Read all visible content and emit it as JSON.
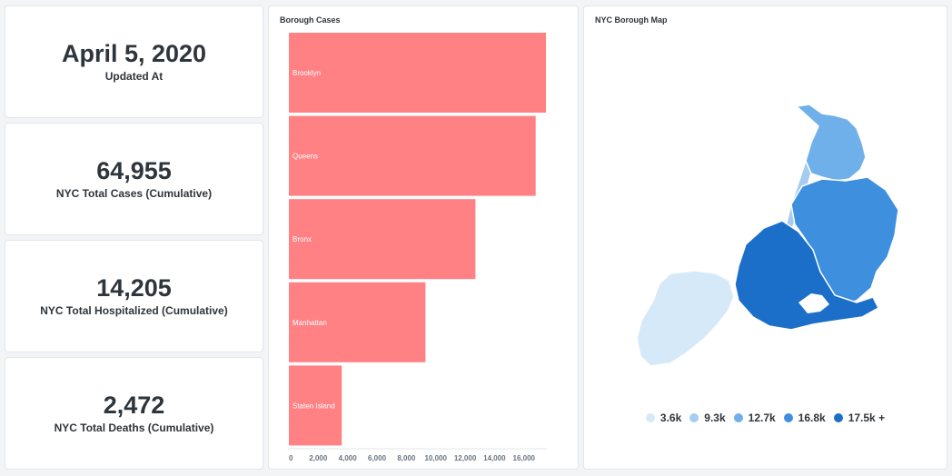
{
  "stats": [
    {
      "value": "April 5, 2020",
      "label": "Updated At"
    },
    {
      "value": "64,955",
      "label": "NYC Total Cases (Cumulative)"
    },
    {
      "value": "14,205",
      "label": "NYC Total Hospitalized (Cumulative)"
    },
    {
      "value": "2,472",
      "label": "NYC Total Deaths (Cumulative)"
    }
  ],
  "bar_card": {
    "title": "Borough Cases"
  },
  "map_card": {
    "title": "NYC Borough Map",
    "legend": [
      {
        "label": "3.6k",
        "color": "#d6e9f8"
      },
      {
        "label": "9.3k",
        "color": "#a6cdf1"
      },
      {
        "label": "12.7k",
        "color": "#6fb0ea"
      },
      {
        "label": "16.8k",
        "color": "#3e8fde"
      },
      {
        "label": "17.5k +",
        "color": "#1b6fc9"
      }
    ]
  },
  "chart_data": {
    "type": "bar",
    "orientation": "horizontal",
    "title": "Borough Cases",
    "categories": [
      "Brooklyn",
      "Queens",
      "Bronx",
      "Manhattan",
      "Staten Island"
    ],
    "values": [
      17500,
      16800,
      12700,
      9300,
      3600
    ],
    "xlim": [
      0,
      17500
    ],
    "xticks": [
      "0",
      "2,000",
      "4,000",
      "6,000",
      "8,000",
      "10,000",
      "12,000",
      "14,000",
      "16,000"
    ],
    "bar_color": "#ff8184",
    "grid": false
  }
}
